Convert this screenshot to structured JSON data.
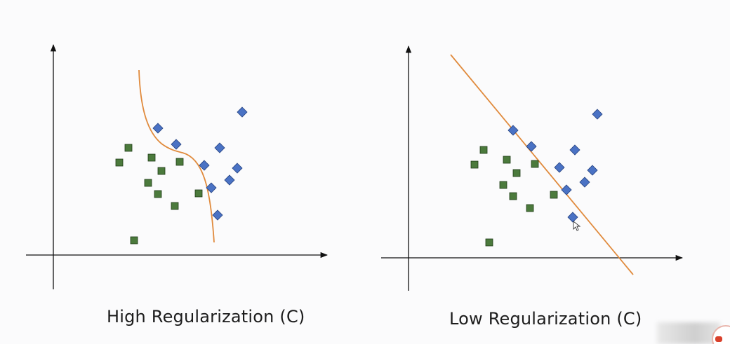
{
  "panels": [
    {
      "id": "left",
      "caption": "High Regularization (C)",
      "boundary": "curve",
      "squares": [
        [
          183,
          211
        ],
        [
          170,
          232
        ],
        [
          216,
          225
        ],
        [
          230,
          244
        ],
        [
          256,
          231
        ],
        [
          211,
          261
        ],
        [
          225,
          277
        ],
        [
          249,
          294
        ],
        [
          283,
          276
        ],
        [
          191,
          343
        ]
      ],
      "diamonds": [
        [
          225,
          183
        ],
        [
          251,
          206
        ],
        [
          313,
          211
        ],
        [
          345,
          160
        ],
        [
          291,
          236
        ],
        [
          338,
          240
        ],
        [
          327,
          257
        ],
        [
          301,
          268
        ],
        [
          310,
          307
        ]
      ]
    },
    {
      "id": "right",
      "caption": "Low Regularization (C)",
      "boundary": "line",
      "squares": [
        [
          689,
          214
        ],
        [
          676,
          235
        ],
        [
          722,
          228
        ],
        [
          736,
          247
        ],
        [
          762,
          234
        ],
        [
          717,
          264
        ],
        [
          731,
          280
        ],
        [
          755,
          297
        ],
        [
          789,
          278
        ],
        [
          697,
          346
        ]
      ],
      "diamonds": [
        [
          731,
          186
        ],
        [
          757,
          209
        ],
        [
          819,
          214
        ],
        [
          851,
          163
        ],
        [
          797,
          239
        ],
        [
          844,
          243
        ],
        [
          833,
          260
        ],
        [
          807,
          271
        ],
        [
          816,
          310
        ]
      ]
    }
  ],
  "colors": {
    "axis": "#111111",
    "boundary": "#e08a3c",
    "square_fill": "#4b7a3c",
    "square_stroke": "#1f3a16",
    "diamond_fill": "#4a72c4",
    "diamond_stroke": "#23407f"
  },
  "icons": [
    "cursor-icon"
  ]
}
